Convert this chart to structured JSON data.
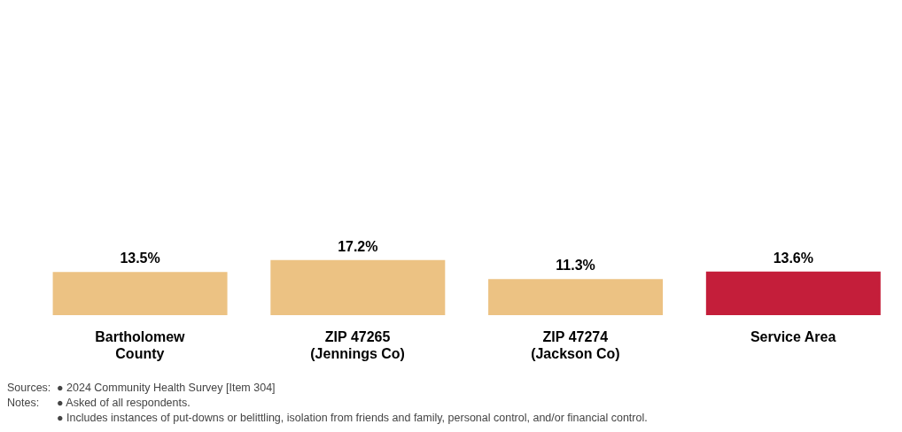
{
  "chart_data": {
    "type": "bar",
    "categories": [
      "Bartholomew\nCounty",
      "ZIP 47265\n(Jennings Co)",
      "ZIP 47274\n(Jackson Co)",
      "Service Area"
    ],
    "values": [
      13.5,
      17.2,
      11.3,
      13.6
    ],
    "colors": [
      "#ecc283",
      "#ecc283",
      "#ecc283",
      "#c41e3a"
    ],
    "value_labels": [
      "13.5%",
      "17.2%",
      "11.3%",
      "13.6%"
    ],
    "grid": false,
    "legend": false,
    "annotations": [
      "Sources:\t●  2024 Community Health Survey [Item 304]",
      "Notes:\t●  Asked of all respondents.",
      "\t●  Includes instances of put-downs or belittling, isolation from friends and family, personal control, and/or financial control."
    ]
  }
}
